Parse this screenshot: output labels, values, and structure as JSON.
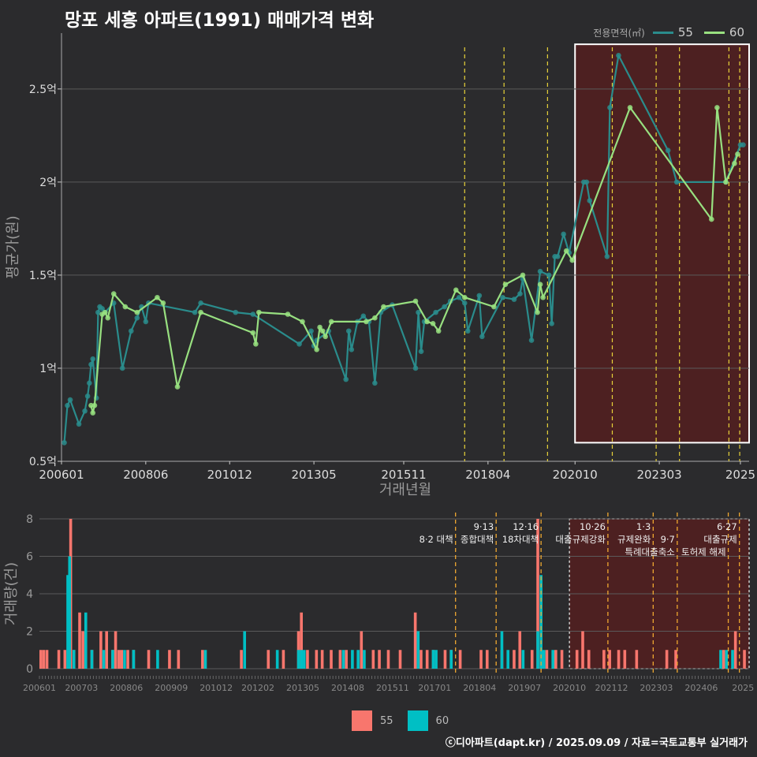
{
  "title": "망포 세흥 아파트(1991) 매매가격 변화",
  "caption": "ⓒ디아파트(dapt.kr) / 2025.09.09 / 자료=국토교통부 실거래가",
  "legend_top": {
    "title": "전용면적(㎡)",
    "items": [
      {
        "label": "55",
        "color": "#2a8c8c"
      },
      {
        "label": "60",
        "color": "#98e080"
      }
    ]
  },
  "legend_bottom": {
    "items": [
      {
        "label": "55",
        "color": "#f8766d"
      },
      {
        "label": "60",
        "color": "#00bfc4"
      }
    ]
  },
  "chart_data": [
    {
      "type": "line",
      "title": "망포 세흥 아파트(1991) 매매가격 변화",
      "xlabel": "거래년월",
      "ylabel": "평균가(원)",
      "xlim": [
        2006.0,
        2025.75
      ],
      "ylim": [
        0.5,
        2.8
      ],
      "x_ticks": [
        {
          "value": 2006.0,
          "label": "200601"
        },
        {
          "value": 2008.42,
          "label": "200806"
        },
        {
          "value": 2010.83,
          "label": "201012"
        },
        {
          "value": 2013.25,
          "label": "201305"
        },
        {
          "value": 2015.83,
          "label": "201511"
        },
        {
          "value": 2018.25,
          "label": "201804"
        },
        {
          "value": 2020.75,
          "label": "202010"
        },
        {
          "value": 2023.17,
          "label": "202303"
        },
        {
          "value": 2025.5,
          "label": "2025"
        }
      ],
      "y_ticks": [
        {
          "value": 0.5,
          "label": "0.5억"
        },
        {
          "value": 1.0,
          "label": "1억"
        },
        {
          "value": 1.5,
          "label": "1.5억"
        },
        {
          "value": 2.0,
          "label": "2억"
        },
        {
          "value": 2.5,
          "label": "2.5억"
        }
      ],
      "policy_lines": [
        2017.58,
        2018.71,
        2019.96,
        2021.82,
        2023.08,
        2023.75,
        2025.17,
        2025.48
      ],
      "highlight": {
        "x_start": 2020.75,
        "x_end": 2025.75,
        "y_start": 0.6,
        "y_end": 2.74
      },
      "series": [
        {
          "name": "55",
          "color": "#2a8c8c",
          "x": [
            2006.08,
            2006.17,
            2006.25,
            2006.5,
            2006.67,
            2006.75,
            2006.8,
            2006.85,
            2006.9,
            2007.0,
            2007.05,
            2007.1,
            2007.17,
            2007.25,
            2007.5,
            2007.75,
            2008.0,
            2008.17,
            2008.3,
            2008.42,
            2008.5,
            2009.83,
            2010.0,
            2011.0,
            2011.5,
            2012.83,
            2013.17,
            2013.25,
            2013.33,
            2013.67,
            2014.17,
            2014.25,
            2014.33,
            2014.5,
            2014.67,
            2014.83,
            2015.0,
            2015.17,
            2015.5,
            2016.17,
            2016.25,
            2016.33,
            2016.42,
            2016.75,
            2017.0,
            2017.17,
            2017.42,
            2017.58,
            2017.67,
            2018.0,
            2018.08,
            2018.67,
            2019.0,
            2019.17,
            2019.25,
            2019.5,
            2019.75,
            2020.0,
            2020.08,
            2020.17,
            2020.25,
            2020.42,
            2020.58,
            2021.0,
            2021.08,
            2021.17,
            2021.67,
            2021.75,
            2022.0,
            2023.42,
            2023.67,
            2025.08,
            2025.5,
            2025.58
          ],
          "y": [
            0.6,
            0.8,
            0.83,
            0.7,
            0.77,
            0.85,
            0.92,
            1.02,
            1.05,
            0.84,
            1.3,
            1.33,
            1.32,
            1.3,
            1.35,
            1.0,
            1.2,
            1.27,
            1.33,
            1.25,
            1.35,
            1.3,
            1.35,
            1.3,
            1.29,
            1.13,
            1.2,
            1.12,
            1.15,
            1.2,
            0.94,
            1.2,
            1.1,
            1.25,
            1.28,
            1.25,
            0.92,
            1.3,
            1.34,
            1.0,
            1.3,
            1.09,
            1.25,
            1.3,
            1.33,
            1.36,
            1.38,
            1.35,
            1.2,
            1.39,
            1.17,
            1.38,
            1.37,
            1.4,
            1.48,
            1.15,
            1.52,
            1.5,
            1.24,
            1.6,
            1.6,
            1.72,
            1.62,
            2.0,
            2.0,
            1.9,
            1.6,
            2.4,
            2.68,
            2.17,
            2.0,
            2.0,
            2.2,
            2.2
          ]
        },
        {
          "name": "60",
          "color": "#98e080",
          "x": [
            2006.85,
            2006.9,
            2006.95,
            2007.17,
            2007.25,
            2007.33,
            2007.5,
            2007.83,
            2008.17,
            2008.75,
            2008.92,
            2009.33,
            2010.0,
            2011.5,
            2011.58,
            2011.67,
            2012.5,
            2012.92,
            2013.33,
            2013.42,
            2013.5,
            2013.58,
            2013.75,
            2014.75,
            2015.0,
            2015.25,
            2016.17,
            2016.5,
            2016.67,
            2016.83,
            2017.33,
            2017.58,
            2018.42,
            2018.75,
            2019.25,
            2019.67,
            2019.75,
            2019.83,
            2020.5,
            2020.67,
            2022.33,
            2024.67,
            2024.83,
            2025.08,
            2025.33,
            2025.42
          ],
          "y": [
            0.8,
            0.76,
            0.8,
            1.29,
            1.3,
            1.27,
            1.4,
            1.33,
            1.3,
            1.38,
            1.35,
            0.9,
            1.3,
            1.19,
            1.13,
            1.3,
            1.29,
            1.25,
            1.1,
            1.22,
            1.2,
            1.17,
            1.25,
            1.25,
            1.27,
            1.33,
            1.36,
            1.25,
            1.24,
            1.2,
            1.42,
            1.38,
            1.33,
            1.45,
            1.5,
            1.3,
            1.45,
            1.38,
            1.63,
            1.58,
            2.4,
            1.8,
            2.4,
            2.0,
            2.1,
            2.15
          ]
        }
      ]
    },
    {
      "type": "bar",
      "ylabel": "거래량(건)",
      "xlim": [
        2006.0,
        2025.75
      ],
      "ylim": [
        0,
        8
      ],
      "x_ticks": [
        {
          "value": 2006.0,
          "label": "200601"
        },
        {
          "value": 2007.17,
          "label": "200703"
        },
        {
          "value": 2008.42,
          "label": "200806"
        },
        {
          "value": 2009.67,
          "label": "200909"
        },
        {
          "value": 2010.92,
          "label": "201012"
        },
        {
          "value": 2012.08,
          "label": "201202"
        },
        {
          "value": 2013.33,
          "label": "201305"
        },
        {
          "value": 2014.58,
          "label": "201408"
        },
        {
          "value": 2015.83,
          "label": "201511"
        },
        {
          "value": 2017.0,
          "label": "201701"
        },
        {
          "value": 2018.25,
          "label": "201804"
        },
        {
          "value": 2019.5,
          "label": "201907"
        },
        {
          "value": 2020.75,
          "label": "202010"
        },
        {
          "value": 2021.92,
          "label": "202112"
        },
        {
          "value": 2023.17,
          "label": "202303"
        },
        {
          "value": 2024.42,
          "label": "202406"
        },
        {
          "value": 2025.58,
          "label": "2025"
        }
      ],
      "y_ticks": [
        0,
        2,
        4,
        6,
        8
      ],
      "policy_lines": [
        2017.58,
        2018.71,
        2019.96,
        2021.82,
        2023.08,
        2023.75,
        2025.17,
        2025.48
      ],
      "highlight": {
        "x_start": 2020.75,
        "x_end": 2025.75
      },
      "annotations": [
        {
          "x": 2017.58,
          "row": 1,
          "text": "8·2 대책",
          "align": "end"
        },
        {
          "x": 2018.71,
          "row": 0,
          "text": "9·13",
          "align": "end"
        },
        {
          "x": 2018.71,
          "row": 1,
          "text": "종합대책",
          "align": "end"
        },
        {
          "x": 2019.96,
          "row": 0,
          "text": "12·16",
          "align": "end"
        },
        {
          "x": 2019.96,
          "row": 1,
          "text": "18차대책",
          "align": "end"
        },
        {
          "x": 2021.82,
          "row": 0,
          "text": "10·26",
          "align": "end"
        },
        {
          "x": 2021.82,
          "row": 1,
          "text": "대출규제강화",
          "align": "end"
        },
        {
          "x": 2023.08,
          "row": 0,
          "text": "1·3",
          "align": "end"
        },
        {
          "x": 2023.08,
          "row": 1,
          "text": "규제완화",
          "align": "end"
        },
        {
          "x": 2023.75,
          "row": 1,
          "text": "9·7",
          "align": "end"
        },
        {
          "x": 2023.75,
          "row": 2,
          "text": "특례대출축소",
          "align": "end"
        },
        {
          "x": 2025.17,
          "row": 2,
          "text": "토허제 해제",
          "align": "end"
        },
        {
          "x": 2025.48,
          "row": 0,
          "text": "6·27",
          "align": "end"
        },
        {
          "x": 2025.48,
          "row": 1,
          "text": "대출규제",
          "align": "end"
        }
      ],
      "series": [
        {
          "name": "55",
          "color": "#f8766d",
          "x": [
            2006.0,
            2006.08,
            2006.17,
            2006.5,
            2006.67,
            2006.83,
            2006.92,
            2007.08,
            2007.17,
            2007.42,
            2007.67,
            2007.83,
            2008.0,
            2008.08,
            2008.17,
            2008.25,
            2008.42,
            2008.58,
            2009.0,
            2009.58,
            2009.83,
            2010.5,
            2011.58,
            2012.33,
            2012.75,
            2013.17,
            2013.25,
            2013.42,
            2013.67,
            2013.83,
            2014.08,
            2014.33,
            2014.5,
            2014.92,
            2015.25,
            2015.42,
            2015.67,
            2016.0,
            2016.42,
            2016.58,
            2016.75,
            2016.92,
            2017.25,
            2017.42,
            2017.67,
            2018.25,
            2018.42,
            2018.83,
            2019.17,
            2019.33,
            2019.67,
            2019.83,
            2019.92,
            2020.08,
            2020.33,
            2020.5,
            2020.92,
            2021.08,
            2021.25,
            2021.67,
            2021.83,
            2022.08,
            2022.25,
            2022.58,
            2023.42,
            2023.67,
            2025.0,
            2025.33,
            2025.58
          ],
          "y": [
            1,
            1,
            1,
            1,
            1,
            8,
            1,
            3,
            2,
            1,
            2,
            2,
            1,
            2,
            1,
            1,
            1,
            1,
            1,
            1,
            1,
            1,
            1,
            1,
            1,
            2,
            3,
            1,
            1,
            1,
            1,
            1,
            1,
            2,
            1,
            1,
            1,
            1,
            3,
            1,
            1,
            1,
            1,
            1,
            1,
            1,
            1,
            1,
            1,
            2,
            1,
            8,
            1,
            1,
            1,
            1,
            1,
            2,
            1,
            1,
            1,
            1,
            1,
            1,
            1,
            1,
            1,
            2,
            1
          ]
        },
        {
          "name": "60",
          "color": "#00bfc4",
          "x": [
            2006.75,
            2006.8,
            2006.92,
            2007.25,
            2007.42,
            2007.75,
            2008.0,
            2008.33,
            2008.58,
            2009.25,
            2010.58,
            2011.67,
            2012.58,
            2013.17,
            2013.25,
            2013.33,
            2014.42,
            2014.67,
            2014.83,
            2015.0,
            2016.5,
            2016.92,
            2017.0,
            2017.42,
            2018.83,
            2019.0,
            2019.42,
            2019.83,
            2019.92,
            2020.0,
            2020.25,
            2024.92,
            2025.08,
            2025.25
          ],
          "y": [
            5,
            6,
            1,
            3,
            1,
            1,
            1,
            1,
            1,
            1,
            1,
            2,
            1,
            1,
            1,
            1,
            1,
            1,
            1,
            1,
            2,
            1,
            1,
            1,
            2,
            1,
            1,
            2,
            5,
            1,
            1,
            1,
            1,
            1
          ]
        }
      ]
    }
  ]
}
